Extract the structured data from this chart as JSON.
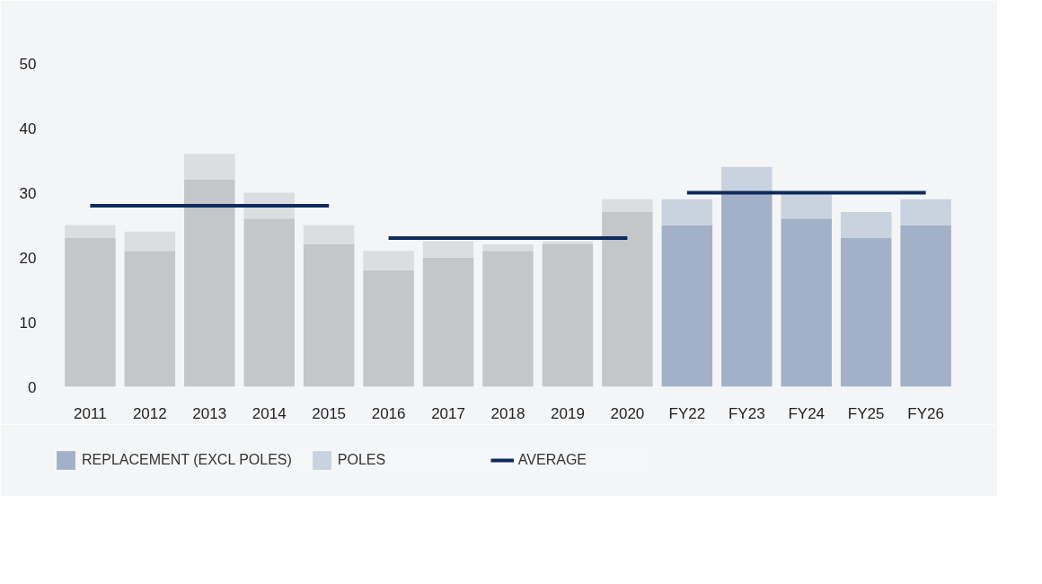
{
  "chart_data": {
    "type": "bar",
    "stacked": true,
    "legend": "bottom",
    "categories": [
      "2011",
      "2012",
      "2013",
      "2014",
      "2015",
      "2016",
      "2017",
      "2018",
      "2019",
      "2020",
      "FY22",
      "FY23",
      "FY24",
      "FY25",
      "FY26"
    ],
    "series": [
      {
        "name": "REPLACEMENT (EXCL POLES)",
        "type": "bar",
        "colors": [
          "#c5c6c8",
          "#c5c6c8",
          "#c5c6c8",
          "#c5c6c8",
          "#c5c6c8",
          "#c5c6c8",
          "#c5c6c8",
          "#c5c6c8",
          "#c5c6c8",
          "#c5c6c8",
          "#a2b1c8",
          "#a2b1c8",
          "#a2b1c8",
          "#a2b1c8",
          "#a2b1c8"
        ],
        "values": [
          23,
          21,
          32,
          26,
          22,
          18,
          20,
          21,
          22,
          27,
          25,
          30,
          26,
          23,
          25
        ]
      },
      {
        "name": "POLES",
        "type": "bar",
        "colors": [
          "#dcdddf",
          "#dcdddf",
          "#dcdddf",
          "#dcdddf",
          "#dcdddf",
          "#dcdddf",
          "#dcdddf",
          "#dcdddf",
          "#dcdddf",
          "#dcdddf",
          "#c9d3df",
          "#c9d3df",
          "#c9d3df",
          "#c9d3df",
          "#c9d3df"
        ],
        "values": [
          2,
          3,
          4,
          4,
          3,
          3,
          2.5,
          1,
          0.5,
          2,
          4,
          4,
          4,
          4,
          4
        ]
      },
      {
        "name": "AVERAGE",
        "type": "line",
        "color": "#0f2a5c",
        "values": [
          28,
          28,
          28,
          28,
          28,
          null,
          null,
          null,
          null,
          null,
          null,
          null,
          null,
          null,
          null
        ]
      },
      {
        "type": "line",
        "color": "#0f2a5c",
        "values": [
          null,
          null,
          null,
          null,
          null,
          23,
          23,
          23,
          23,
          23,
          null,
          null,
          null,
          null,
          null
        ]
      },
      {
        "type": "line",
        "color": "#0f2a5c",
        "values": [
          null,
          null,
          null,
          null,
          null,
          null,
          null,
          null,
          null,
          null,
          30,
          30,
          30,
          30,
          30
        ]
      }
    ],
    "ylim": [
      0,
      50
    ],
    "yticks": [
      0,
      10,
      20,
      30,
      40,
      50
    ]
  }
}
